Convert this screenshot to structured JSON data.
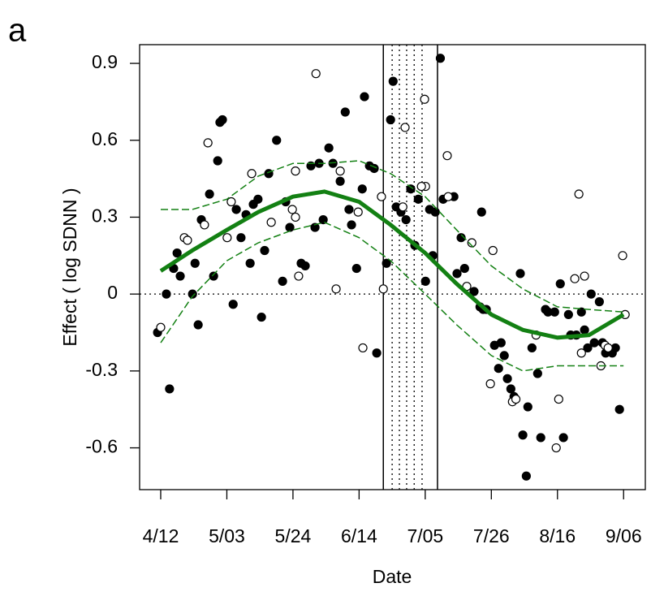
{
  "chart_data": {
    "type": "scatter",
    "panel_label": "a",
    "xlabel": "Date",
    "ylabel": "Effect ( log SDNN )",
    "xlim": [
      95.3,
      255.9
    ],
    "ylim": [
      -0.763,
      0.973
    ],
    "xticks": [
      {
        "value": 102,
        "label": "4/12"
      },
      {
        "value": 123,
        "label": "5/03"
      },
      {
        "value": 144,
        "label": "5/24"
      },
      {
        "value": 165,
        "label": "6/14"
      },
      {
        "value": 186,
        "label": "7/05"
      },
      {
        "value": 207,
        "label": "7/26"
      },
      {
        "value": 228,
        "label": "8/16"
      },
      {
        "value": 249,
        "label": "9/06"
      }
    ],
    "yticks": [
      -0.6,
      -0.3,
      0,
      0.3,
      0.6,
      0.9
    ],
    "hline": 0,
    "vlines_solid": [
      172.7,
      189.9
    ],
    "vlines_dotted": [
      175.5,
      177.8,
      180.1,
      182.5,
      185.0
    ],
    "points": [
      {
        "filled": true,
        "color": "#000000",
        "x": [
          101.0,
          103.8,
          104.8,
          106.1,
          107.2,
          108.2,
          112.1,
          112.9,
          113.9,
          114.9,
          117.5,
          118.8,
          120.1,
          120.8,
          121.6,
          125.0,
          126.0,
          127.5,
          129.1,
          130.4,
          131.4,
          132.9,
          134.0,
          135.0,
          136.3,
          138.8,
          140.7,
          141.7,
          143.0,
          146.6,
          147.9,
          149.7,
          151.0,
          152.3,
          153.6,
          155.4,
          156.7,
          159.0,
          160.6,
          161.8,
          162.6,
          164.2,
          166.0,
          166.7,
          168.3,
          169.8,
          170.6,
          173.7,
          175.0,
          175.8,
          176.8,
          178.3,
          179.9,
          181.4,
          182.7,
          183.8,
          186.1,
          187.4,
          188.4,
          189.2,
          190.8,
          191.7,
          195.1,
          196.1,
          197.4,
          198.5,
          201.5,
          203.4,
          203.9,
          204.4,
          205.4,
          208.0,
          209.3,
          210.1,
          211.1,
          212.1,
          213.2,
          214.2,
          216.2,
          217.0,
          218.1,
          218.6,
          219.9,
          221.7,
          222.7,
          224.2,
          225.0,
          227.1,
          228.9,
          229.9,
          231.5,
          232.2,
          234.0,
          235.6,
          236.6,
          237.6,
          238.7,
          239.7,
          241.3,
          242.3,
          243.3,
          245.4,
          246.4,
          247.7
        ],
        "y": [
          -0.15,
          0,
          -0.37,
          0.1,
          0.16,
          0.07,
          0,
          0.12,
          -0.12,
          0.29,
          0.39,
          0.07,
          0.52,
          0.67,
          0.68,
          -0.04,
          0.33,
          0.22,
          0.31,
          0.12,
          0.35,
          0.37,
          -0.09,
          0.17,
          0.47,
          0.6,
          0.05,
          0.36,
          0.26,
          0.12,
          0.11,
          0.5,
          0.26,
          0.51,
          0.29,
          0.57,
          0.51,
          0.44,
          0.71,
          0.33,
          0.27,
          0.1,
          0.41,
          0.77,
          0.5,
          0.49,
          -0.23,
          0.12,
          0.68,
          0.83,
          0.34,
          0.32,
          0.29,
          0.41,
          0.19,
          0.37,
          0.05,
          0.33,
          0.15,
          0.32,
          0.92,
          0.37,
          0.38,
          0.08,
          0.22,
          0.1,
          0.01,
          -0.05,
          0.32,
          -0.06,
          -0.06,
          -0.2,
          -0.29,
          -0.19,
          -0.24,
          -0.33,
          -0.37,
          -0.4,
          0.08,
          -0.55,
          -0.71,
          -0.44,
          -0.21,
          -0.31,
          -0.56,
          -0.06,
          -0.07,
          -0.07,
          0.04,
          -0.56,
          -0.08,
          -0.16,
          -0.16,
          -0.07,
          -0.14,
          -0.21,
          0,
          -0.19,
          -0.03,
          -0.19,
          -0.23,
          -0.23,
          -0.21,
          -0.45
        ]
      },
      {
        "filled": false,
        "color": "#000000",
        "x": [
          102.0,
          109.5,
          110.5,
          115.9,
          117.0,
          123.1,
          124.4,
          130.9,
          137.1,
          144.8,
          143.8,
          144.8,
          145.8,
          151.3,
          157.7,
          159.0,
          164.7,
          166.2,
          172.1,
          172.7,
          178.9,
          179.6,
          185.8,
          186.1,
          184.8,
          193.0,
          193.3,
          199.2,
          200.8,
          206.7,
          207.5,
          213.7,
          214.8,
          221.2,
          227.6,
          228.4,
          233.5,
          234.8,
          236.6,
          235.6,
          241.8,
          243.1,
          244.1,
          248.7,
          249.5
        ],
        "y": [
          -0.13,
          0.22,
          0.21,
          0.27,
          0.59,
          0.22,
          0.36,
          0.47,
          0.28,
          0.48,
          0.33,
          0.3,
          0.07,
          0.86,
          0.02,
          0.48,
          0.32,
          -0.21,
          0.38,
          0.02,
          0.34,
          0.65,
          0.76,
          0.42,
          0.42,
          0.54,
          0.38,
          0.03,
          0.2,
          -0.35,
          0.17,
          -0.42,
          -0.41,
          -0.16,
          -0.6,
          -0.41,
          0.06,
          0.39,
          0.07,
          -0.23,
          -0.28,
          -0.2,
          -0.21,
          0.15,
          -0.08
        ]
      }
    ],
    "fit": {
      "color": "#138013",
      "x": [
        102,
        112,
        123,
        133,
        144,
        154,
        165,
        175,
        186,
        196,
        207,
        217,
        228,
        238,
        249
      ],
      "y": [
        0.09,
        0.17,
        0.25,
        0.32,
        0.38,
        0.4,
        0.36,
        0.27,
        0.16,
        0.04,
        -0.08,
        -0.14,
        -0.17,
        -0.16,
        -0.08
      ],
      "upper": [
        0.33,
        0.33,
        0.37,
        0.46,
        0.51,
        0.51,
        0.52,
        0.47,
        0.38,
        0.25,
        0.11,
        0.02,
        -0.05,
        -0.06,
        -0.07
      ],
      "lower": [
        -0.19,
        -0.01,
        0.13,
        0.2,
        0.25,
        0.28,
        0.22,
        0.13,
        0.0,
        -0.12,
        -0.24,
        -0.3,
        -0.28,
        -0.28,
        -0.28
      ]
    }
  }
}
